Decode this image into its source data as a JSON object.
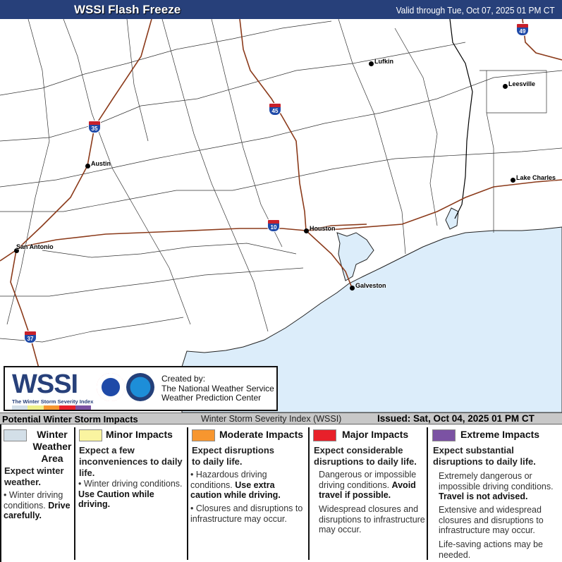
{
  "header": {
    "title": "WSSI Flash Freeze",
    "valid": "Valid through Tue, Oct 07, 2025 01 PM CT"
  },
  "map": {
    "colors": {
      "water": "#dcedfa",
      "road": "#8b3a1a",
      "county": "#333333"
    },
    "cities": [
      {
        "name": "Lufkin"
      },
      {
        "name": "Leesville"
      },
      {
        "name": "Austin"
      },
      {
        "name": "Lake Charles"
      },
      {
        "name": "Houston"
      },
      {
        "name": "San Antonio"
      },
      {
        "name": "Galveston"
      }
    ],
    "interstates": [
      "49",
      "45",
      "35",
      "10",
      "37"
    ]
  },
  "logo": {
    "wordmark": "WSSI",
    "subtitle": "The Winter Storm Severity Index",
    "created_by": "Created by:",
    "org1": "The National Weather Service",
    "org2": "Weather Prediction Center",
    "seal1": "National Weather Service",
    "seal2": "NOAA"
  },
  "band": {
    "left": "Potential Winter Storm Impacts",
    "center": "Winter Storm Severity Index (WSSI)",
    "issued": "Issued: Sat, Oct 04, 2025 01 PM CT"
  },
  "legend": [
    {
      "color": "#d3dfe8",
      "title": "Winter Weather Area",
      "lead": "Expect winter weather.",
      "b1": "Winter driving conditions.",
      "b1bold": "Drive carefully."
    },
    {
      "color": "#faf4a0",
      "title": "Minor Impacts",
      "lead": "Expect a few inconveniences to daily life.",
      "b1": "Winter driving conditions.",
      "b1bold": "Use Caution while driving."
    },
    {
      "color": "#f7962f",
      "title": "Moderate Impacts",
      "lead": "Expect disruptions to daily life.",
      "b1": "Hazardous driving conditions.",
      "b1bold": "Use extra caution while driving.",
      "b2": "Closures and disruptions to infrastructure may occur."
    },
    {
      "color": "#e8202a",
      "title": "Major Impacts",
      "lead": "Expect considerable disruptions to daily life.",
      "b1": "Dangerous or impossible driving conditions.",
      "b1bold": "Avoid travel if possible.",
      "b2": "Widespread closures and disruptions to infrastructure may occur."
    },
    {
      "color": "#7b52a3",
      "title": "Extreme Impacts",
      "lead": "Expect substantial disruptions to daily life.",
      "b1": "Extremely dangerous or impossible driving conditions.",
      "b1bold": "Travel is not advised.",
      "b2": "Extensive and widespread closures and disruptions to infrastructure may occur.",
      "b3": "Life-saving actions may be needed."
    }
  ]
}
